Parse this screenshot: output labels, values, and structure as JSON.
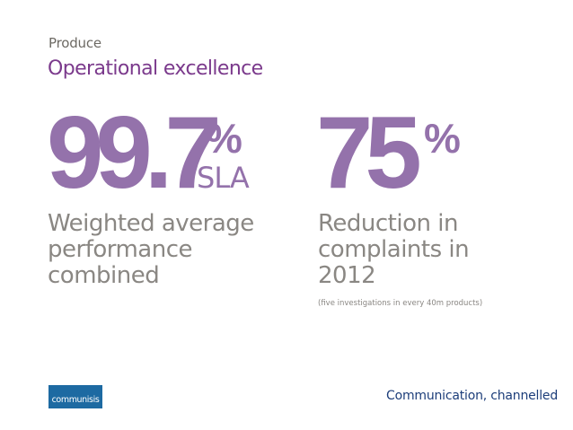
{
  "header": {
    "section": "Produce",
    "title": "Operational excellence"
  },
  "stats": [
    {
      "value": "99.7",
      "symbol": "%",
      "unit": "SLA",
      "description": "Weighted average performance combined"
    },
    {
      "value": "75",
      "symbol": "%",
      "description": "Reduction in complaints in 2012",
      "note": "(five investigations in every 40m products)"
    }
  ],
  "footer": {
    "logo_text": "communisis",
    "tagline": "Communication, channelled"
  },
  "colors": {
    "title_purple": "#7b3a8c",
    "stat_purple": "#9472ab",
    "body_gray": "#8a8783",
    "label_gray": "#6d6a64",
    "brand_blue": "#1d6aa2",
    "tagline_navy": "#1d3e7a"
  }
}
